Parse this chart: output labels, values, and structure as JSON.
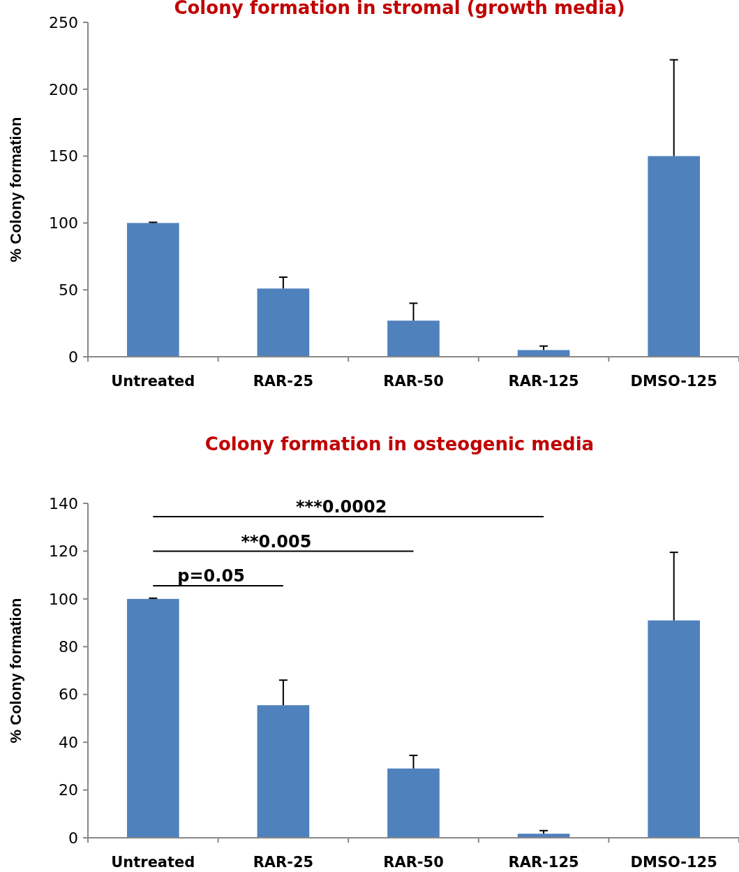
{
  "chart_data": [
    {
      "type": "bar",
      "title": "Colony formation in stromal (growth media)",
      "ylabel": "% Colony formation",
      "categories": [
        "Untreated",
        "RAR-25",
        "RAR-50",
        "RAR-125",
        "DMSO-125"
      ],
      "values": [
        100,
        51,
        27,
        5,
        150
      ],
      "errors": [
        [
          100,
          100.5
        ],
        [
          51,
          59.5
        ],
        [
          27,
          40
        ],
        [
          5,
          8
        ],
        [
          150,
          222
        ]
      ],
      "color": "#4f81bd",
      "ylim": [
        0,
        250
      ],
      "yticks": [
        0,
        50,
        100,
        150,
        200,
        250
      ],
      "grid": false
    },
    {
      "type": "bar",
      "title": "Colony formation in osteogenic media",
      "ylabel": "% Colony formation",
      "categories": [
        "Untreated",
        "RAR-25",
        "RAR-50",
        "RAR-125",
        "DMSO-125"
      ],
      "values": [
        100,
        55.5,
        29,
        1.7,
        91
      ],
      "errors": [
        [
          100,
          100.3
        ],
        [
          55.5,
          66
        ],
        [
          29,
          34.5
        ],
        [
          1.7,
          3
        ],
        [
          91,
          119.5
        ]
      ],
      "color": "#4f81bd",
      "ylim": [
        0,
        140
      ],
      "yticks": [
        0,
        20,
        40,
        60,
        80,
        100,
        120,
        140
      ],
      "grid": false,
      "annotations": [
        "p=0.05",
        "**0.005",
        "***0.0002"
      ]
    }
  ]
}
